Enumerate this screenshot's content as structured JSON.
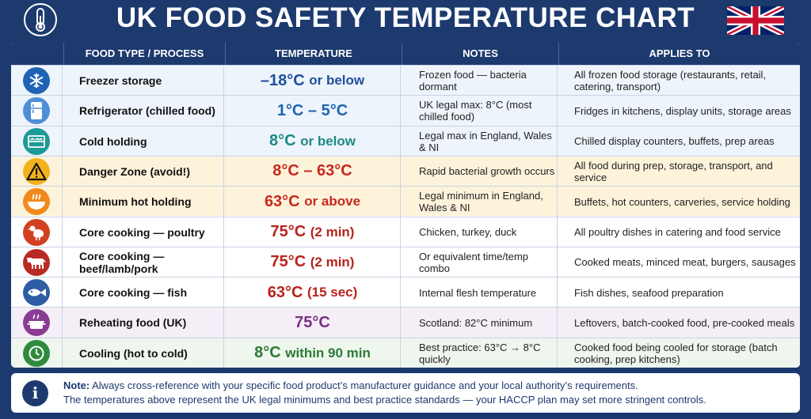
{
  "title": "UK FOOD SAFETY TEMPERATURE CHART",
  "headers": [
    "FOOD TYPE / PROCESS",
    "TEMPERATURE",
    "NOTES",
    "APPLIES TO"
  ],
  "rows": [
    {
      "icon": "snowflake-icon",
      "icon_color": "#1f63b5",
      "bg": "#eef4fb",
      "food": "Freezer storage",
      "temp_main": "–18°C",
      "temp_suffix": "or below",
      "temp_color": "#1f4f9c",
      "notes": "Frozen food — bacteria dormant",
      "applies": "All frozen food storage (restaurants, retail, catering, transport)"
    },
    {
      "icon": "refrigerator-icon",
      "icon_color": "#4d8ed6",
      "bg": "#eef4fb",
      "food": "Refrigerator (chilled food)",
      "temp_main": "1°C – 5°C",
      "temp_suffix": "",
      "temp_color": "#1e63b4",
      "notes": "UK legal max: 8°C (most chilled food)",
      "applies": "Fridges in kitchens, display units, storage areas"
    },
    {
      "icon": "display-counter-icon",
      "icon_color": "#1c9a95",
      "bg": "#eef4fb",
      "food": "Cold holding",
      "temp_main": "8°C",
      "temp_suffix": "or below",
      "temp_color": "#1c8a86",
      "notes": "Legal max in England, Wales & NI",
      "applies": "Chilled display counters, buffets, prep areas"
    },
    {
      "icon": "warning-icon",
      "icon_color": "#f2b21d",
      "bg": "#fdf3db",
      "food": "Danger Zone (avoid!)",
      "temp_main": "8°C – 63°C",
      "temp_suffix": "",
      "temp_color": "#c8281e",
      "notes": "Rapid bacterial growth occurs",
      "applies": "All food during prep, storage, transport, and service"
    },
    {
      "icon": "hot-dish-icon",
      "icon_color": "#f08a1c",
      "bg": "#fdf3db",
      "food": "Minimum hot holding",
      "temp_main": "63°C",
      "temp_suffix": "or above",
      "temp_color": "#c8281e",
      "notes": "Legal minimum in England, Wales & NI",
      "applies": "Buffets, hot counters, carveries, service holding"
    },
    {
      "icon": "chicken-icon",
      "icon_color": "#d2401f",
      "bg": "#ffffff",
      "food": "Core cooking — poultry",
      "temp_main": "75°C",
      "temp_suffix": "(2 min)",
      "temp_color": "#b8231c",
      "notes": "Chicken, turkey, duck",
      "applies": "All poultry dishes in catering and food service"
    },
    {
      "icon": "cow-icon",
      "icon_color": "#b82a24",
      "bg": "#ffffff",
      "food": "Core cooking — beef/lamb/pork",
      "temp_main": "75°C",
      "temp_suffix": "(2 min)",
      "temp_color": "#b8231c",
      "notes": "Or equivalent time/temp combo",
      "applies": "Cooked meats, minced meat, burgers, sausages"
    },
    {
      "icon": "fish-icon",
      "icon_color": "#2e5da6",
      "bg": "#ffffff",
      "food": "Core cooking — fish",
      "temp_main": "63°C",
      "temp_suffix": "(15 sec)",
      "temp_color": "#b8231c",
      "notes": "Internal flesh temperature",
      "applies": "Fish dishes, seafood preparation"
    },
    {
      "icon": "cooking-pot-icon",
      "icon_color": "#8a3c93",
      "bg": "#f4eef7",
      "food": "Reheating food (UK)",
      "temp_main": "75°C",
      "temp_suffix": "",
      "temp_color": "#7a2f86",
      "notes": "Scotland: 82°C minimum",
      "applies": "Leftovers, batch-cooked food, pre-cooked meals"
    },
    {
      "icon": "clock-icon",
      "icon_color": "#2f8a3c",
      "bg": "#eef6ee",
      "food": "Cooling (hot to cold)",
      "temp_main": "8°C",
      "temp_suffix": "within 90 min",
      "temp_color": "#2b7a34",
      "notes": "Best practice: 63°C → 8°C quickly",
      "applies": "Cooked food being cooled for storage (batch cooking, prep kitchens)"
    }
  ],
  "note": {
    "label": "Note:",
    "line1": "Always cross-reference with your specific food product’s manufacturer guidance and your local authority’s requirements.",
    "line2": "The temperatures above represent the UK legal minimums and best practice standards — your HACCP plan may set more stringent controls."
  },
  "colors": {
    "navy": "#1d3a6e"
  }
}
